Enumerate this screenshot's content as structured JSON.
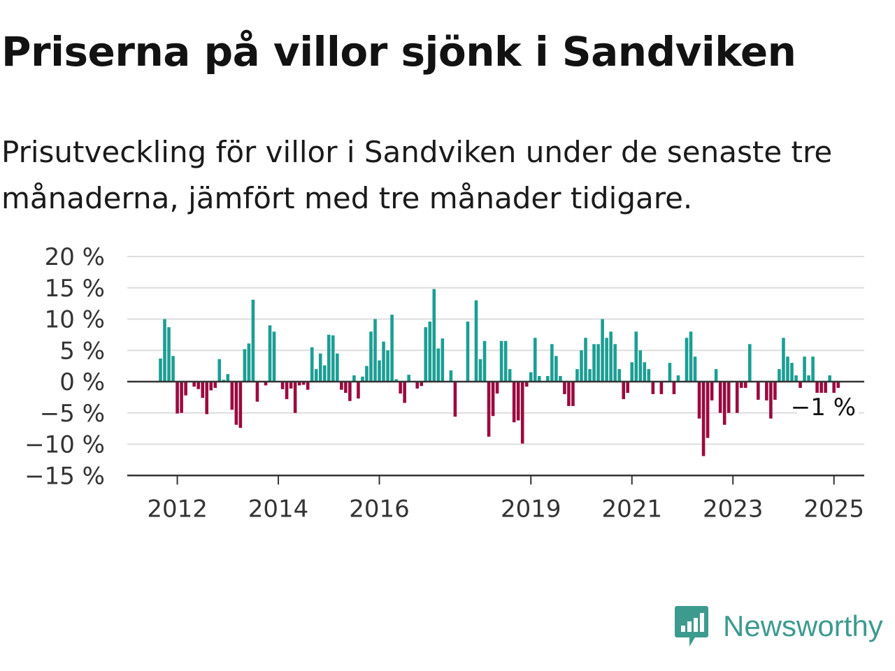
{
  "title": "Priserna på villor sjönk i Sandviken",
  "subtitle": "Prisutveckling för villor i Sandviken under de senaste tre månaderna, jämfört med tre månader tidigare.",
  "brand": {
    "name": "Newsworthy",
    "icon": "newsworthy-logo-icon",
    "color": "#3d9a8f"
  },
  "colors": {
    "positive": "#1b9e94",
    "negative": "#9b0a3f",
    "grid": "#dddddd",
    "axis": "#333333"
  },
  "chart_data": {
    "type": "bar",
    "ylim": [
      -15,
      20
    ],
    "yticks": [
      20,
      15,
      10,
      5,
      0,
      -5,
      -10,
      -15
    ],
    "ytick_labels": [
      "20 %",
      "15 %",
      "10 %",
      "5 %",
      "0 %",
      "−5 %",
      "−10 %",
      "−15 %"
    ],
    "xticks": [
      {
        "label": "2012",
        "year": 2012
      },
      {
        "label": "2014",
        "year": 2014
      },
      {
        "label": "2016",
        "year": 2016
      },
      {
        "label": "2019",
        "year": 2019
      },
      {
        "label": "2021",
        "year": 2021
      },
      {
        "label": "2023",
        "year": 2023
      },
      {
        "label": "2025",
        "year": 2025
      }
    ],
    "last_value_label": "−1 %",
    "x_start": "2011-09",
    "values": [
      3.7,
      10,
      8.7,
      4.1,
      -5.1,
      -5,
      -2.2,
      0,
      -0.8,
      -1.2,
      -2.6,
      -5.2,
      -1.4,
      -1,
      3.6,
      0.3,
      1.2,
      -4.5,
      -6.9,
      -7.4,
      5.2,
      6.1,
      13.1,
      -3.2,
      0,
      -0.6,
      9,
      8,
      0,
      -1.2,
      -2.8,
      -1.1,
      -5,
      -0.6,
      -0.5,
      -1.3,
      5.5,
      2,
      4.5,
      2.6,
      7.5,
      7.4,
      4.5,
      -1.3,
      -1.8,
      -3.1,
      1,
      -2.7,
      0.8,
      2.5,
      8,
      10,
      3.4,
      6.4,
      5,
      10.7,
      0.4,
      -1.9,
      -3.4,
      1.1,
      0,
      -1.1,
      -0.7,
      8.7,
      9.6,
      14.8,
      5.3,
      6.9,
      0,
      1.8,
      -5.6,
      0,
      0,
      9.6,
      0,
      13,
      3.6,
      6.5,
      -8.8,
      -5.5,
      -1.9,
      6.5,
      6.5,
      2,
      -6.5,
      -6.2,
      -9.9,
      -0.8,
      1.5,
      7,
      0.9,
      0,
      0.9,
      6,
      4.1,
      0.9,
      -2,
      -3.9,
      -3.9,
      2,
      5,
      7,
      2,
      6,
      6,
      10,
      7,
      8,
      6,
      2,
      -2.8,
      -1.8,
      3.1,
      8,
      5,
      3.1,
      2,
      -2,
      0,
      -2,
      0,
      3,
      -2,
      1,
      0,
      7,
      8,
      4,
      -5.9,
      -11.9,
      -9,
      -3,
      2,
      -5,
      -6.9,
      -5,
      0,
      -5,
      -1,
      -1,
      6,
      0,
      -2.9,
      0,
      -3,
      -5.9,
      -2.9,
      2,
      7,
      4,
      3,
      1,
      -1,
      4,
      1,
      4,
      -3.3,
      -2.5,
      -1.9,
      1,
      -1.8,
      -1
    ]
  }
}
